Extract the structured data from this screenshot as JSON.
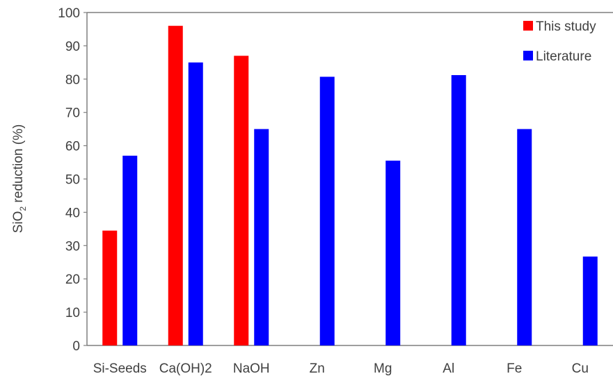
{
  "chart_data": {
    "type": "bar",
    "title": "",
    "xlabel": "",
    "ylabel_main": "SiO",
    "ylabel_sub": "2",
    "ylabel_rest": " reduction (%)",
    "ylim": [
      0,
      100
    ],
    "yticks": [
      0,
      10,
      20,
      30,
      40,
      50,
      60,
      70,
      80,
      90,
      100
    ],
    "grid": false,
    "legend_position": "top-right",
    "categories": [
      "Si-Seeds",
      "Ca(OH)2",
      "NaOH",
      "Zn",
      "Mg",
      "Al",
      "Fe",
      "Cu"
    ],
    "series": [
      {
        "name": "This study",
        "color": "#ff0000",
        "values": [
          34.5,
          96,
          87,
          null,
          null,
          null,
          null,
          null
        ]
      },
      {
        "name": "Literature",
        "color": "#0000ff",
        "values": [
          57,
          85,
          65,
          80.7,
          55.5,
          81.2,
          65,
          26.7
        ]
      }
    ]
  }
}
